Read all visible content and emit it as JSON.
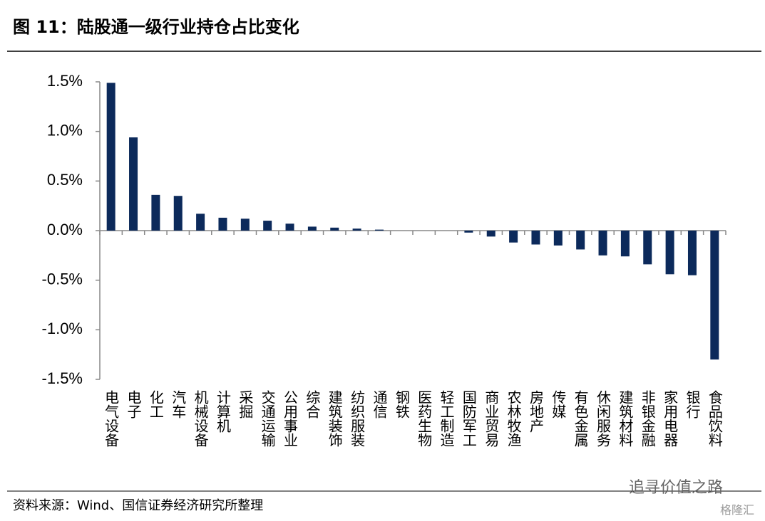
{
  "chart_data": {
    "type": "bar",
    "title": "图 11：陆股通一级行业持仓占比变化",
    "source": "资料来源：Wind、国信证券经济研究所整理",
    "watermark": "追寻价值之路",
    "logo": "格隆汇",
    "categories": [
      "电气设备",
      "电子",
      "化工",
      "汽车",
      "机械设备",
      "计算机",
      "采掘",
      "交通运输",
      "公用事业",
      "综合",
      "建筑装饰",
      "纺织服装",
      "通信",
      "钢铁",
      "医药生物",
      "轻工制造",
      "国防军工",
      "商业贸易",
      "农林牧渔",
      "房地产",
      "传媒",
      "有色金属",
      "休闲服务",
      "建筑材料",
      "非银金融",
      "家用电器",
      "银行",
      "食品饮料"
    ],
    "values": [
      1.49,
      0.94,
      0.36,
      0.35,
      0.17,
      0.13,
      0.12,
      0.1,
      0.07,
      0.04,
      0.03,
      0.02,
      0.01,
      0.0,
      0.0,
      0.0,
      -0.02,
      -0.06,
      -0.12,
      -0.14,
      -0.15,
      -0.19,
      -0.25,
      -0.26,
      -0.34,
      -0.44,
      -0.45,
      -1.3
    ],
    "color": "#0c2a5b",
    "ylim": [
      -1.5,
      1.5
    ],
    "yticks": [
      {
        "value": 1.5,
        "label": "1.5%"
      },
      {
        "value": 1.0,
        "label": "1.0%"
      },
      {
        "value": 0.5,
        "label": "0.5%"
      },
      {
        "value": 0.0,
        "label": "0.0%"
      },
      {
        "value": -0.5,
        "label": "-0.5%"
      },
      {
        "value": -1.0,
        "label": "-1.0%"
      },
      {
        "value": -1.5,
        "label": "-1.5%"
      }
    ],
    "grid": false
  }
}
